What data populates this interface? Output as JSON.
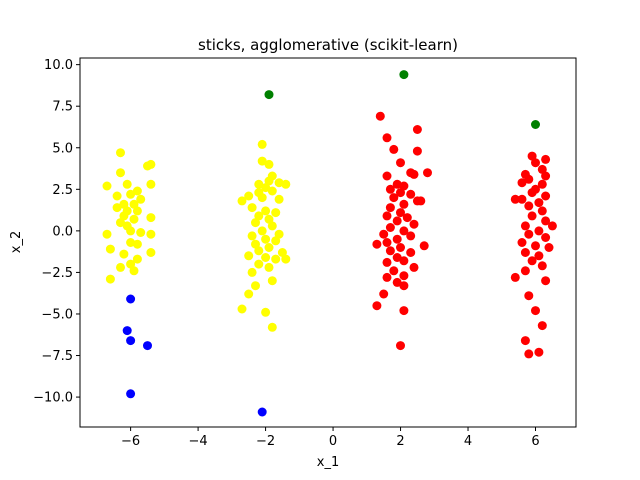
{
  "chart_data": {
    "type": "scatter",
    "title": "sticks, agglomerative (scikit-learn)",
    "xlabel": "x_1",
    "ylabel": "x_2",
    "xlim": [
      -7.5,
      7.2
    ],
    "ylim": [
      -11.8,
      10.4
    ],
    "xticks": [
      -6,
      -4,
      -2,
      0,
      2,
      4,
      6
    ],
    "yticks": [
      -10.0,
      -7.5,
      -5.0,
      -2.5,
      0.0,
      2.5,
      5.0,
      7.5,
      10.0
    ],
    "xtick_labels": [
      "−6",
      "−4",
      "−2",
      "0",
      "2",
      "4",
      "6"
    ],
    "ytick_labels": [
      "−10.0",
      "−7.5",
      "−5.0",
      "−2.5",
      "0.0",
      "2.5",
      "5.0",
      "7.5",
      "10.0"
    ],
    "grid": false,
    "colors": {
      "yellow": "#ffff00",
      "red": "#ff0000",
      "blue": "#0000ff",
      "green": "#008000"
    },
    "series": [
      {
        "color": "#ffff00",
        "points": [
          [
            -6.3,
            4.7
          ],
          [
            -6.3,
            3.5
          ],
          [
            -5.5,
            3.9
          ],
          [
            -5.4,
            4.0
          ],
          [
            -6.1,
            2.8
          ],
          [
            -5.4,
            2.8
          ],
          [
            -6.7,
            2.7
          ],
          [
            -5.8,
            2.4
          ],
          [
            -6.0,
            2.2
          ],
          [
            -6.4,
            2.1
          ],
          [
            -5.7,
            1.9
          ],
          [
            -6.2,
            1.6
          ],
          [
            -5.9,
            1.6
          ],
          [
            -6.4,
            1.4
          ],
          [
            -6.1,
            1.2
          ],
          [
            -5.8,
            1.2
          ],
          [
            -6.2,
            0.9
          ],
          [
            -5.9,
            0.7
          ],
          [
            -5.4,
            0.8
          ],
          [
            -6.3,
            0.5
          ],
          [
            -6.1,
            0.3
          ],
          [
            -6.0,
            0.0
          ],
          [
            -5.7,
            -0.1
          ],
          [
            -6.7,
            -0.2
          ],
          [
            -5.4,
            -0.2
          ],
          [
            -6.0,
            -0.7
          ],
          [
            -5.8,
            -0.8
          ],
          [
            -6.6,
            -1.1
          ],
          [
            -6.2,
            -1.4
          ],
          [
            -5.4,
            -1.3
          ],
          [
            -5.8,
            -1.7
          ],
          [
            -6.0,
            -2.0
          ],
          [
            -6.3,
            -2.2
          ],
          [
            -5.9,
            -2.4
          ],
          [
            -6.6,
            -2.9
          ],
          [
            -2.1,
            5.2
          ],
          [
            -2.1,
            4.2
          ],
          [
            -1.9,
            4.0
          ],
          [
            -1.8,
            3.3
          ],
          [
            -1.9,
            3.0
          ],
          [
            -2.2,
            2.8
          ],
          [
            -1.6,
            2.9
          ],
          [
            -1.4,
            2.8
          ],
          [
            -2.0,
            2.6
          ],
          [
            -2.2,
            2.3
          ],
          [
            -1.8,
            2.4
          ],
          [
            -2.5,
            2.1
          ],
          [
            -2.1,
            2.0
          ],
          [
            -1.6,
            1.9
          ],
          [
            -2.7,
            1.8
          ],
          [
            -2.4,
            1.4
          ],
          [
            -2.0,
            1.2
          ],
          [
            -1.7,
            1.1
          ],
          [
            -2.2,
            0.9
          ],
          [
            -1.9,
            0.7
          ],
          [
            -2.3,
            0.5
          ],
          [
            -1.8,
            0.3
          ],
          [
            -2.1,
            0.0
          ],
          [
            -1.6,
            -0.2
          ],
          [
            -2.4,
            -0.3
          ],
          [
            -2.0,
            -0.5
          ],
          [
            -1.7,
            -0.6
          ],
          [
            -2.3,
            -0.8
          ],
          [
            -1.9,
            -1.0
          ],
          [
            -2.2,
            -1.2
          ],
          [
            -1.5,
            -1.3
          ],
          [
            -2.5,
            -1.5
          ],
          [
            -2.0,
            -1.6
          ],
          [
            -1.7,
            -1.7
          ],
          [
            -1.4,
            -1.7
          ],
          [
            -2.2,
            -2.0
          ],
          [
            -1.9,
            -2.2
          ],
          [
            -2.4,
            -2.5
          ],
          [
            -1.8,
            -3.0
          ],
          [
            -2.3,
            -3.3
          ],
          [
            -2.5,
            -3.8
          ],
          [
            -2.7,
            -4.7
          ],
          [
            -2.0,
            -4.9
          ],
          [
            -1.8,
            -5.8
          ]
        ]
      },
      {
        "color": "#ff0000",
        "points": [
          [
            1.4,
            6.9
          ],
          [
            2.5,
            6.1
          ],
          [
            1.6,
            5.6
          ],
          [
            1.8,
            4.9
          ],
          [
            2.5,
            4.8
          ],
          [
            2.0,
            4.1
          ],
          [
            2.3,
            3.5
          ],
          [
            2.4,
            3.4
          ],
          [
            2.8,
            3.5
          ],
          [
            1.6,
            3.3
          ],
          [
            1.9,
            2.8
          ],
          [
            2.1,
            2.7
          ],
          [
            1.7,
            2.5
          ],
          [
            2.0,
            2.3
          ],
          [
            2.3,
            2.2
          ],
          [
            1.8,
            2.0
          ],
          [
            2.5,
            1.8
          ],
          [
            2.6,
            1.8
          ],
          [
            2.1,
            1.6
          ],
          [
            1.7,
            1.4
          ],
          [
            2.0,
            1.1
          ],
          [
            1.6,
            0.9
          ],
          [
            2.2,
            0.8
          ],
          [
            1.9,
            0.6
          ],
          [
            2.4,
            0.4
          ],
          [
            1.7,
            0.2
          ],
          [
            2.1,
            0.0
          ],
          [
            1.5,
            -0.2
          ],
          [
            2.3,
            -0.3
          ],
          [
            1.9,
            -0.5
          ],
          [
            1.6,
            -0.7
          ],
          [
            1.3,
            -0.8
          ],
          [
            2.7,
            -0.9
          ],
          [
            2.0,
            -1.0
          ],
          [
            1.7,
            -1.2
          ],
          [
            2.3,
            -1.3
          ],
          [
            1.9,
            -1.6
          ],
          [
            2.1,
            -1.8
          ],
          [
            1.6,
            -1.9
          ],
          [
            2.4,
            -2.2
          ],
          [
            1.8,
            -2.4
          ],
          [
            2.1,
            -2.7
          ],
          [
            1.6,
            -2.8
          ],
          [
            1.9,
            -3.1
          ],
          [
            2.1,
            -3.3
          ],
          [
            1.5,
            -3.8
          ],
          [
            1.3,
            -4.5
          ],
          [
            2.1,
            -4.8
          ],
          [
            2.0,
            -6.9
          ],
          [
            6.3,
            4.3
          ],
          [
            5.9,
            4.5
          ],
          [
            6.0,
            4.1
          ],
          [
            6.2,
            3.7
          ],
          [
            5.7,
            3.4
          ],
          [
            6.3,
            3.3
          ],
          [
            5.8,
            3.1
          ],
          [
            5.6,
            2.9
          ],
          [
            6.2,
            2.8
          ],
          [
            6.0,
            2.5
          ],
          [
            5.9,
            2.3
          ],
          [
            6.3,
            2.1
          ],
          [
            5.6,
            1.9
          ],
          [
            6.1,
            1.7
          ],
          [
            5.8,
            1.5
          ],
          [
            6.2,
            1.2
          ],
          [
            5.9,
            0.9
          ],
          [
            6.3,
            0.6
          ],
          [
            5.7,
            0.3
          ],
          [
            6.1,
            0.0
          ],
          [
            5.8,
            -0.2
          ],
          [
            6.3,
            -0.4
          ],
          [
            5.6,
            -0.7
          ],
          [
            6.0,
            -0.9
          ],
          [
            6.4,
            -1.0
          ],
          [
            5.7,
            -1.3
          ],
          [
            6.1,
            -1.5
          ],
          [
            5.9,
            -1.8
          ],
          [
            6.2,
            -2.1
          ],
          [
            5.7,
            -2.4
          ],
          [
            5.4,
            -2.8
          ],
          [
            6.3,
            -3.0
          ],
          [
            5.8,
            -3.9
          ],
          [
            6.0,
            -4.8
          ],
          [
            6.2,
            -5.7
          ],
          [
            5.7,
            -6.6
          ],
          [
            5.8,
            -7.4
          ],
          [
            6.1,
            -7.3
          ],
          [
            5.4,
            1.9
          ],
          [
            6.5,
            0.3
          ]
        ]
      },
      {
        "color": "#0000ff",
        "points": [
          [
            -6.0,
            -4.1
          ],
          [
            -6.1,
            -6.0
          ],
          [
            -6.0,
            -6.6
          ],
          [
            -5.5,
            -6.9
          ],
          [
            -6.0,
            -9.8
          ],
          [
            -2.1,
            -10.9
          ]
        ]
      },
      {
        "color": "#008000",
        "points": [
          [
            -1.9,
            8.2
          ],
          [
            2.1,
            9.4
          ],
          [
            6.0,
            6.4
          ]
        ]
      }
    ]
  }
}
